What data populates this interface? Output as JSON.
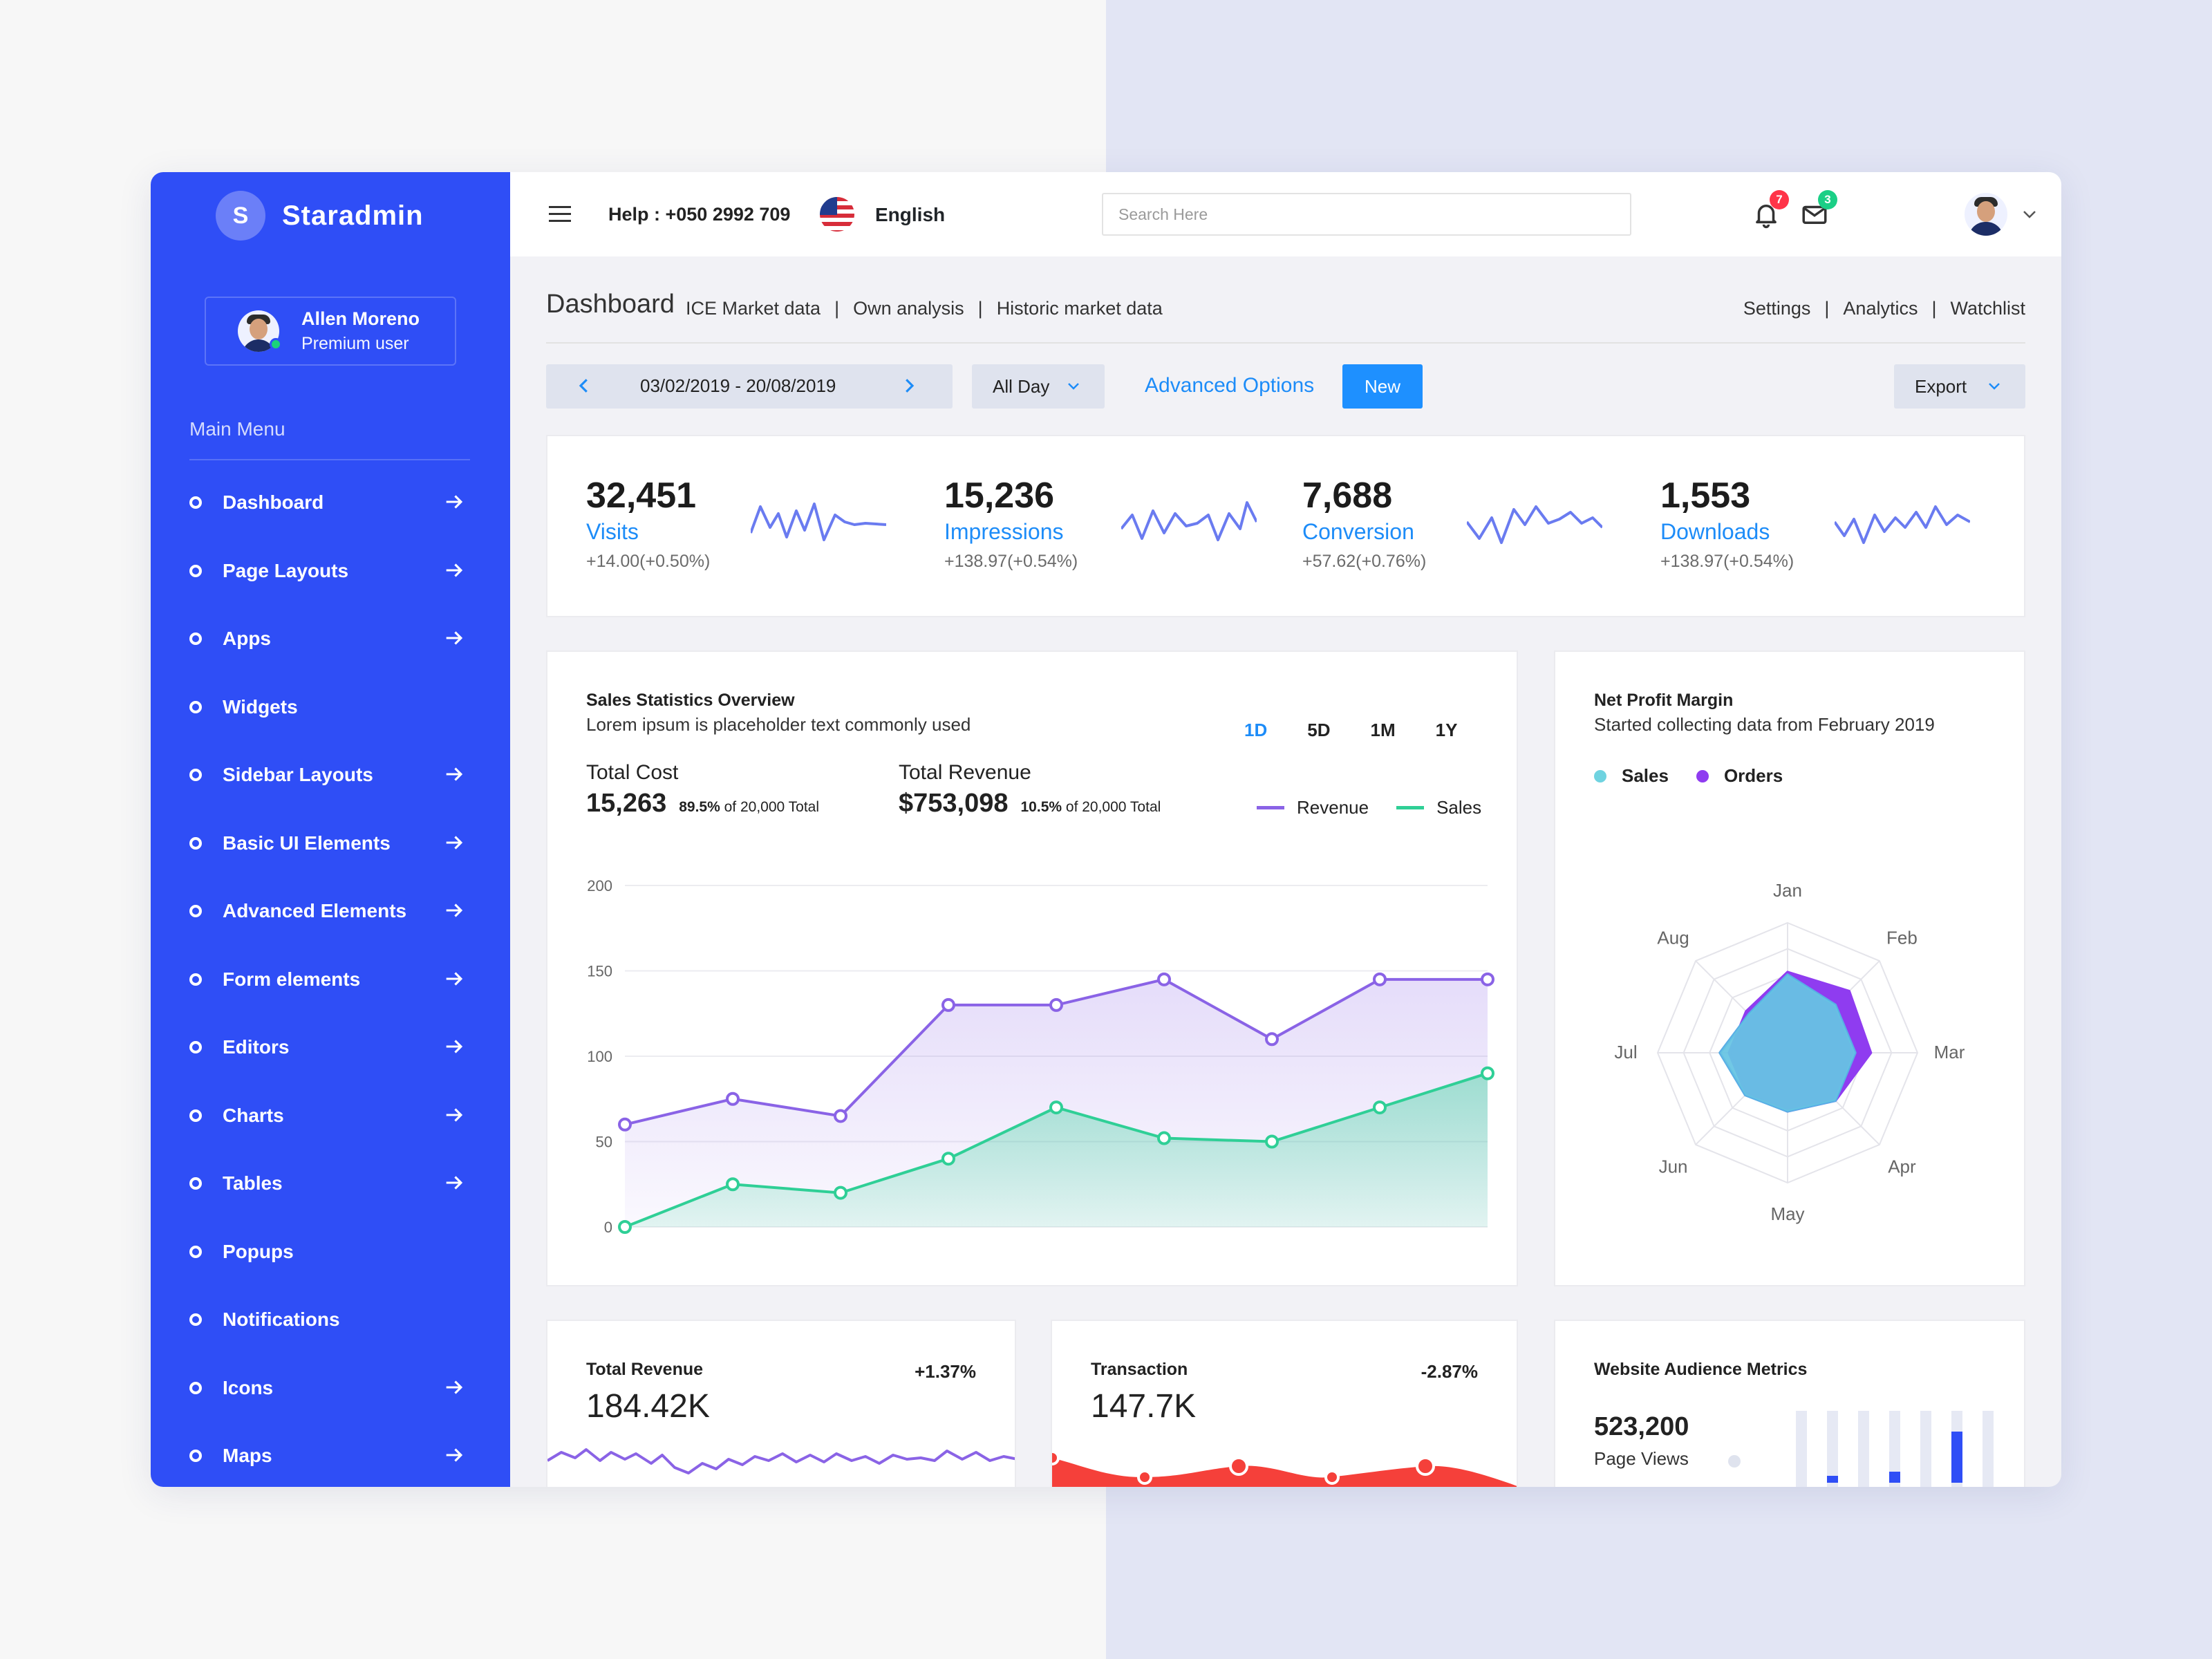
{
  "brand": {
    "initial": "S",
    "name": "Staradmin"
  },
  "user": {
    "name": "Allen Moreno",
    "role": "Premium user"
  },
  "sidebar": {
    "menu_title": "Main Menu",
    "items": [
      {
        "label": "Dashboard",
        "has_arrow": true
      },
      {
        "label": "Page Layouts",
        "has_arrow": true
      },
      {
        "label": "Apps",
        "has_arrow": true
      },
      {
        "label": "Widgets",
        "has_arrow": false
      },
      {
        "label": "Sidebar Layouts",
        "has_arrow": true
      },
      {
        "label": "Basic UI Elements",
        "has_arrow": true
      },
      {
        "label": "Advanced Elements",
        "has_arrow": true
      },
      {
        "label": "Form elements",
        "has_arrow": true
      },
      {
        "label": "Editors",
        "has_arrow": true
      },
      {
        "label": "Charts",
        "has_arrow": true
      },
      {
        "label": "Tables",
        "has_arrow": true
      },
      {
        "label": "Popups",
        "has_arrow": false
      },
      {
        "label": "Notifications",
        "has_arrow": false
      },
      {
        "label": "Icons",
        "has_arrow": true
      },
      {
        "label": "Maps",
        "has_arrow": true
      }
    ]
  },
  "topbar": {
    "help": "Help : +050 2992 709",
    "language": "English",
    "search_placeholder": "Search Here",
    "notifications_count": "7",
    "messages_count": "3",
    "icons": [
      "menu-icon",
      "flag-icon",
      "bell-icon",
      "mail-icon",
      "chevron-down-icon"
    ]
  },
  "page": {
    "title": "Dashboard",
    "sublinks": [
      "ICE Market data",
      "Own analysis",
      "Historic market data"
    ],
    "right_links": [
      "Settings",
      "Analytics",
      "Watchlist"
    ]
  },
  "toolbar": {
    "date_range": "03/02/2019 - 20/08/2019",
    "period_select": "All Day",
    "advanced": "Advanced Options",
    "new": "New",
    "export": "Export"
  },
  "stats": [
    {
      "value": "32,451",
      "label": "Visits",
      "change": "+14.00(+0.50%)"
    },
    {
      "value": "15,236",
      "label": "Impressions",
      "change": "+138.97(+0.54%)"
    },
    {
      "value": "7,688",
      "label": "Conversion",
      "change": "+57.62(+0.76%)"
    },
    {
      "value": "1,553",
      "label": "Downloads",
      "change": "+138.97(+0.54%)"
    }
  ],
  "sales": {
    "title": "Sales Statistics Overview",
    "subtitle": "Lorem ipsum is placeholder text commonly used",
    "periods": [
      "1D",
      "5D",
      "1M",
      "1Y"
    ],
    "active_period": "1D",
    "total_cost_label": "Total Cost",
    "total_cost": "15,263",
    "total_cost_pct": "89.5%",
    "total_cost_of": "of 20,000 Total",
    "total_revenue_label": "Total Revenue",
    "total_revenue": "$753,098",
    "total_revenue_pct": "10.5%",
    "total_revenue_of": "of 20,000 Total"
  },
  "net_profit": {
    "title": "Net Profit Margin",
    "subtitle": "Started collecting data from February 2019"
  },
  "total_revenue_card": {
    "title": "Total Revenue",
    "change": "+1.37%",
    "value": "184.42K"
  },
  "transaction_card": {
    "title": "Transaction",
    "change": "-2.87%",
    "value": "147.7K"
  },
  "audience": {
    "title": "Website Audience Metrics",
    "value": "523,200",
    "label": "Page Views"
  },
  "colors": {
    "sidebar": "#2f4ef6",
    "accent_blue": "#1d8cf8",
    "revenue": "#8a63e6",
    "sales": "#2fcf96",
    "radar_sales": "#6fd3e0",
    "radar_orders": "#8f3cf0",
    "negative": "#f5403a",
    "badge_red": "#ff3448",
    "badge_green": "#1bcf86"
  },
  "float_icons": [
    "gear-icon",
    "chat-icon",
    "document-icon",
    "cart-icon"
  ],
  "chart_data": [
    {
      "type": "area",
      "x": [
        1,
        2,
        3,
        4,
        5,
        6,
        7,
        8,
        9
      ],
      "ylim": [
        0,
        200
      ],
      "yticks": [
        0,
        50,
        100,
        150,
        200
      ],
      "grid": true,
      "legend": "top-right",
      "series": [
        {
          "name": "Revenue",
          "values": [
            60,
            75,
            65,
            130,
            130,
            145,
            110,
            145,
            145
          ]
        },
        {
          "name": "Sales",
          "values": [
            0,
            25,
            20,
            40,
            70,
            52,
            50,
            70,
            90
          ]
        }
      ]
    },
    {
      "type": "radar",
      "categories": [
        "Jan",
        "Feb",
        "Mar",
        "Apr",
        "May",
        "Jun",
        "Jul",
        "Aug"
      ],
      "rmax": 100,
      "legend": "top-left",
      "series": [
        {
          "name": "Sales",
          "values": [
            60,
            52,
            52,
            52,
            45,
            46,
            52,
            42
          ]
        },
        {
          "name": "Orders",
          "values": [
            62,
            67,
            64,
            52,
            45,
            45,
            45,
            45
          ]
        }
      ]
    }
  ]
}
